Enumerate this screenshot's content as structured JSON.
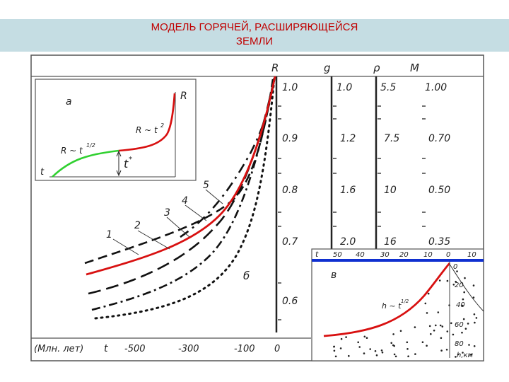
{
  "title": "МОДЕЛЬ ГОРЯЧЕЙ, РАСШИРЯЮЩЕЙСЯ\nЗЕМЛИ",
  "colors": {
    "title": "#c00000",
    "title_bg": "#c5dde3",
    "red_curve": "#d81010",
    "green_curve": "#30d030",
    "blue_line": "#1030d0"
  },
  "columns": {
    "headers": [
      "R",
      "g",
      "ρ",
      "M"
    ],
    "R": [
      "1.0",
      "0.9",
      "0.8",
      "0.7",
      "0.6"
    ],
    "g": [
      "1.0",
      "1.2",
      "1.6",
      "2.0"
    ],
    "rho": [
      "5.5",
      "7.5",
      "10",
      "16"
    ],
    "M": [
      "1.00",
      "0.70",
      "0.50",
      "0.35"
    ]
  },
  "x_axis": {
    "label": "(Млн. лет)",
    "var": "t",
    "ticks": [
      "-500",
      "-300",
      "-100",
      "0"
    ]
  },
  "curve_labels": [
    "1",
    "2",
    "3",
    "4",
    "5"
  ],
  "panel_label_b": "б",
  "inset_a": {
    "label": "а",
    "R": "R",
    "law_left": "R ~ t",
    "exp_left": "1/2",
    "law_right": "R ~ t",
    "exp_right": "2",
    "t_star": "t",
    "star": "*",
    "t": "t"
  },
  "inset_v": {
    "label": "в",
    "t": "t",
    "ticks": [
      "50",
      "40",
      "30",
      "20",
      "10",
      "0",
      "10"
    ],
    "law": "h ~ t",
    "law_exp": "1/2",
    "depth": [
      "0",
      "20",
      "40",
      "60",
      "80"
    ],
    "unit": "h,км"
  }
}
